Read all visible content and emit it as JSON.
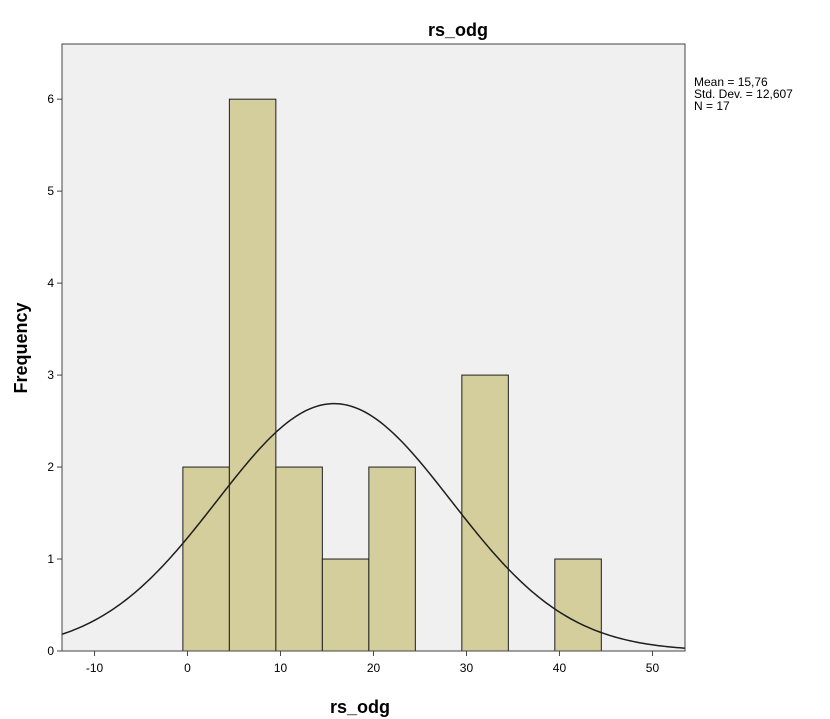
{
  "chart_data": {
    "type": "bar",
    "title": "rs_odg",
    "xlabel": "rs_odg",
    "ylabel": "Frequency",
    "xlim": [
      -13.5,
      53.5
    ],
    "ylim": [
      0,
      6.6
    ],
    "xticks": [
      -10,
      0,
      10,
      20,
      30,
      40,
      50
    ],
    "yticks": [
      0,
      1,
      2,
      3,
      4,
      5,
      6
    ],
    "bins": [
      {
        "start": -0.5,
        "end": 4.5,
        "count": 2
      },
      {
        "start": 4.5,
        "end": 9.5,
        "count": 6
      },
      {
        "start": 9.5,
        "end": 14.5,
        "count": 2
      },
      {
        "start": 14.5,
        "end": 19.5,
        "count": 1
      },
      {
        "start": 19.5,
        "end": 24.5,
        "count": 2
      },
      {
        "start": 29.5,
        "end": 34.5,
        "count": 3
      },
      {
        "start": 39.5,
        "end": 44.5,
        "count": 1
      }
    ],
    "normal_curve": {
      "mean": 15.76,
      "std_dev": 12.607,
      "n": 17,
      "bin_width": 5
    },
    "stats_box": [
      "Mean = 15,76",
      "Std. Dev. = 12,607",
      "N = 17"
    ],
    "colors": {
      "bar_fill": "#d3ce9b",
      "bar_stroke": "#1e1e1e",
      "plot_bg": "#f0f0f0",
      "curve": "#1e1e1e"
    },
    "grid": false,
    "legend": "none"
  }
}
